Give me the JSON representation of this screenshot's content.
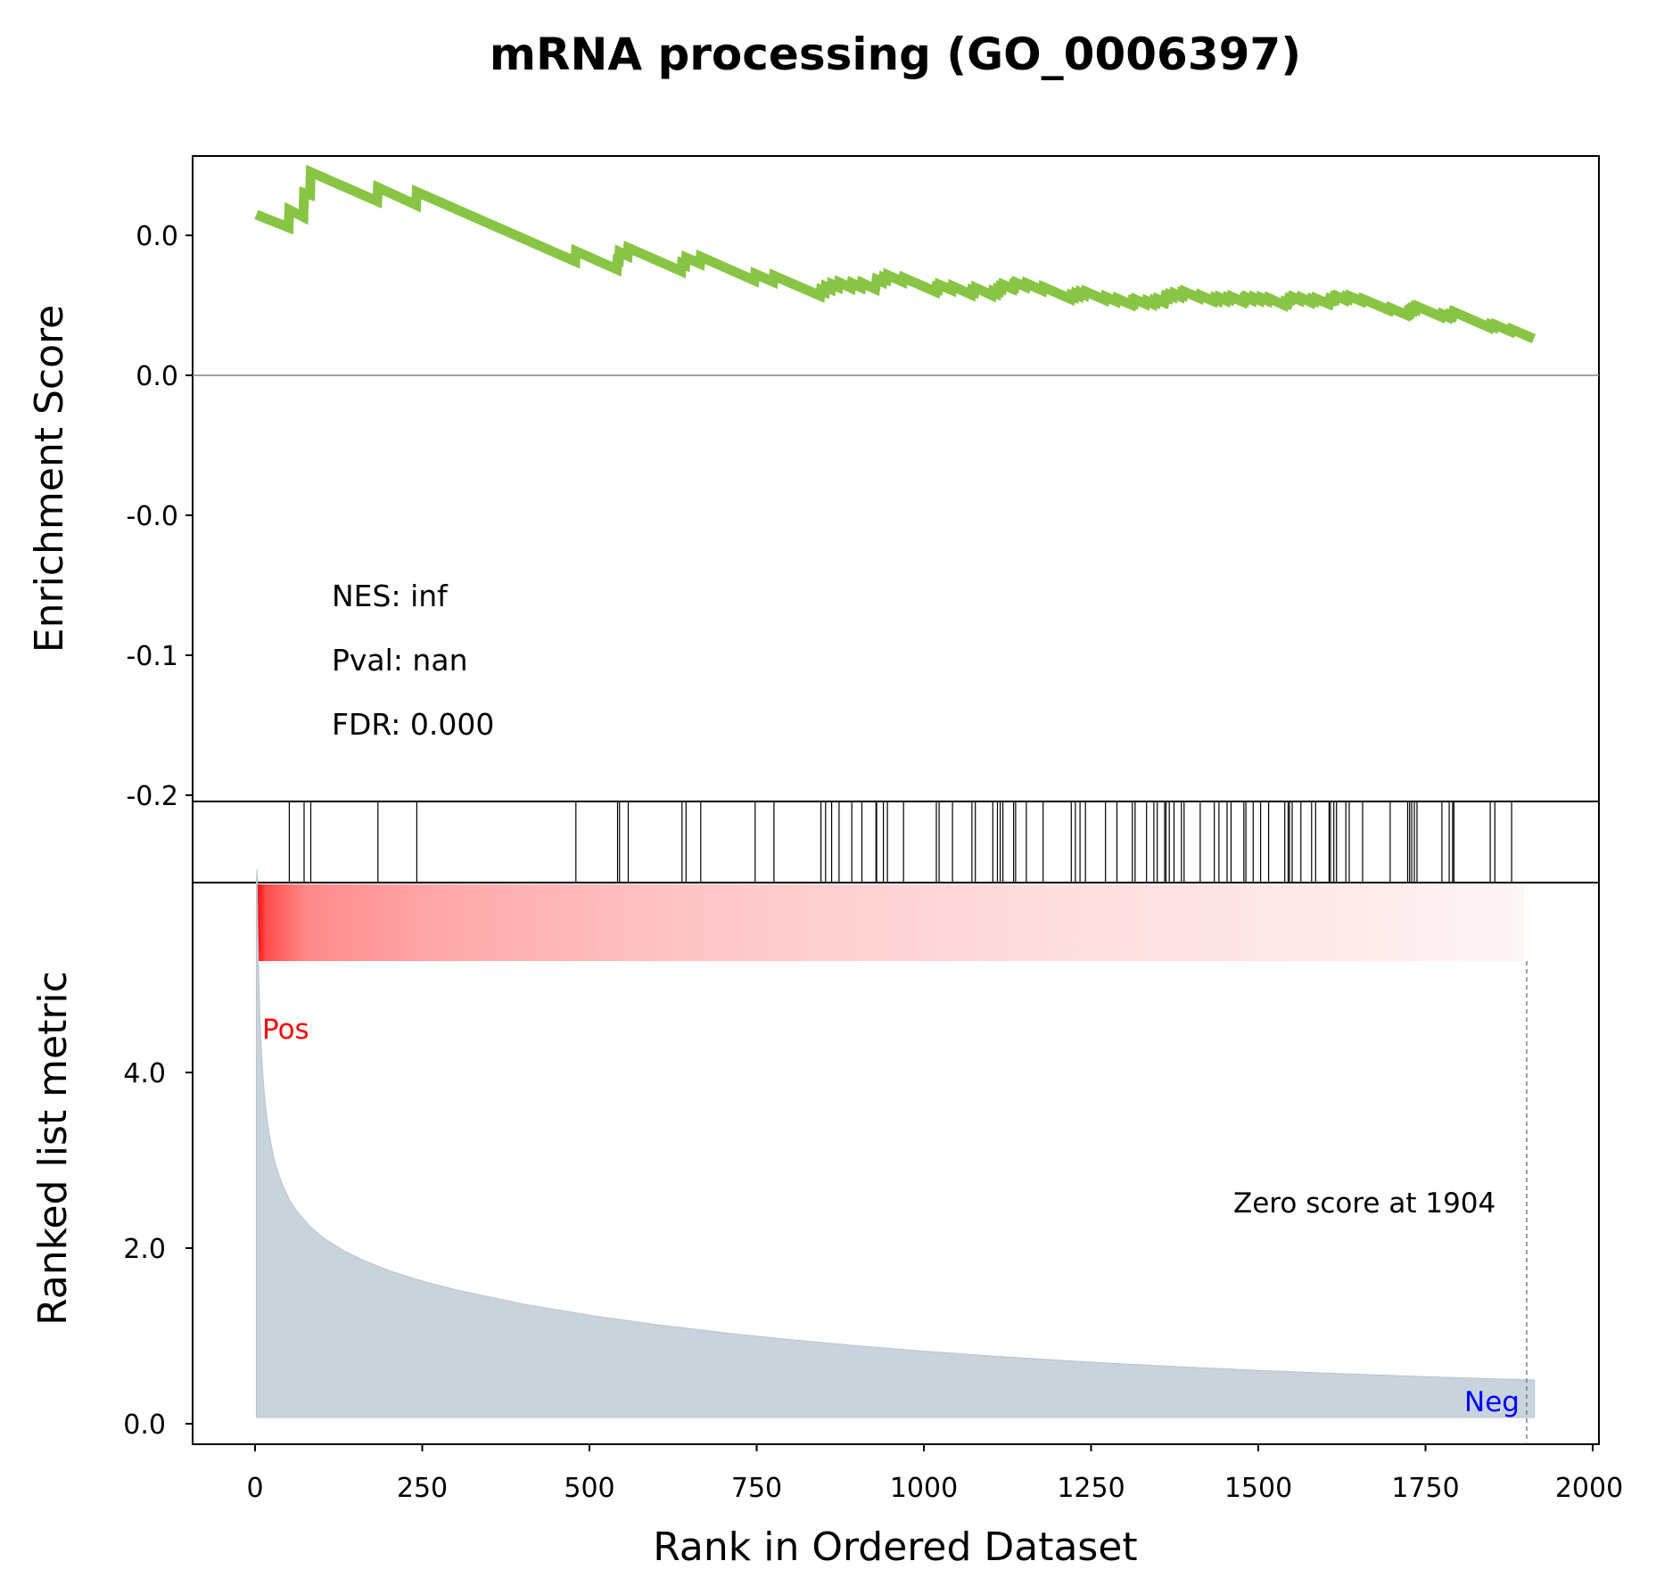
{
  "title": "mRNA processing (GO_0006397)",
  "es_panel": {
    "ylabel": "Enrichment Score",
    "ytick_labels": [
      "0.0",
      "0.0",
      "-0.0",
      "-0.1",
      "-0.1",
      "-0.2"
    ],
    "stats": {
      "nes": "NES: inf",
      "pval": "Pval: nan",
      "fdr": "FDR: 0.000"
    }
  },
  "metric_panel": {
    "ylabel": "Ranked list metric",
    "ytick_labels": [
      "0.0",
      "2.0",
      "4.0"
    ],
    "pos_label": "Pos",
    "neg_label": "Neg",
    "zero_label": "Zero score at 1904"
  },
  "xlabel": "Rank in Ordered Dataset",
  "xtick_labels": [
    "0",
    "250",
    "500",
    "750",
    "1000",
    "1250",
    "1500",
    "1750",
    "2000"
  ],
  "colors": {
    "es_line": "#88c544",
    "metric_fill": "#c9d3dc",
    "heat_start": "#ff0000",
    "pos_label": "#ff0000",
    "neg_label": "#0000ff"
  },
  "chart_data": {
    "type": "line",
    "xlabel": "Rank in Ordered Dataset",
    "ylabel": "Enrichment Score",
    "xlim": [
      -95,
      2000
    ],
    "es_ylim": [
      -0.23,
      0.023
    ],
    "metric_ylim": [
      -0.25,
      5.0
    ],
    "zero_score_rank": 1904,
    "hit_ranks": [
      49,
      71,
      81,
      181,
      239,
      476,
      538,
      541,
      554,
      634,
      640,
      662,
      743,
      771,
      841,
      848,
      857,
      868,
      887,
      902,
      923,
      924,
      934,
      940,
      964,
      1013,
      1017,
      1037,
      1066,
      1071,
      1097,
      1104,
      1108,
      1112,
      1128,
      1131,
      1147,
      1172,
      1214,
      1220,
      1227,
      1235,
      1265,
      1282,
      1305,
      1309,
      1326,
      1337,
      1342,
      1353,
      1355,
      1360,
      1367,
      1378,
      1382,
      1406,
      1427,
      1434,
      1446,
      1452,
      1471,
      1474,
      1485,
      1496,
      1508,
      1532,
      1537,
      1539,
      1543,
      1556,
      1572,
      1578,
      1598,
      1600,
      1605,
      1609,
      1623,
      1628,
      1648,
      1689,
      1715,
      1718,
      1721,
      1725,
      1729,
      1766,
      1777,
      1782,
      1784,
      1838,
      1845,
      1870
    ],
    "running_es": [
      [
        0,
        0.0
      ],
      [
        48,
        -0.005
      ],
      [
        49,
        0.0019
      ],
      [
        70,
        -0.0009
      ],
      [
        71,
        0.0085
      ],
      [
        80,
        0.0078
      ],
      [
        81,
        0.0167
      ],
      [
        180,
        0.0053
      ],
      [
        181,
        0.0107
      ],
      [
        238,
        0.0038
      ],
      [
        239,
        0.0089
      ],
      [
        475,
        -0.0183
      ],
      [
        476,
        -0.0143
      ],
      [
        537,
        -0.0214
      ],
      [
        538,
        -0.0178
      ],
      [
        540,
        -0.018
      ],
      [
        541,
        -0.0146
      ],
      [
        553,
        -0.0161
      ],
      [
        554,
        -0.013
      ],
      [
        633,
        -0.0221
      ],
      [
        634,
        -0.0191
      ],
      [
        639,
        -0.0197
      ],
      [
        640,
        -0.0168
      ],
      [
        661,
        -0.0192
      ],
      [
        662,
        -0.0165
      ],
      [
        742,
        -0.0258
      ],
      [
        743,
        -0.0232
      ],
      [
        770,
        -0.0263
      ],
      [
        771,
        -0.0239
      ],
      [
        840,
        -0.0318
      ],
      [
        841,
        -0.0296
      ],
      [
        847,
        -0.0303
      ],
      [
        848,
        -0.0282
      ],
      [
        856,
        -0.0292
      ],
      [
        857,
        -0.0272
      ],
      [
        867,
        -0.0284
      ],
      [
        868,
        -0.0265
      ],
      [
        886,
        -0.0287
      ],
      [
        887,
        -0.0268
      ],
      [
        901,
        -0.0285
      ],
      [
        902,
        -0.0267
      ],
      [
        922,
        -0.0291
      ],
      [
        924,
        -0.0254
      ],
      [
        933,
        -0.0264
      ],
      [
        934,
        -0.0247
      ],
      [
        939,
        -0.0253
      ],
      [
        940,
        -0.0236
      ],
      [
        963,
        -0.0263
      ],
      [
        964,
        -0.0247
      ],
      [
        1012,
        -0.0302
      ],
      [
        1013,
        -0.0286
      ],
      [
        1016,
        -0.029
      ],
      [
        1017,
        -0.0274
      ],
      [
        1036,
        -0.0296
      ],
      [
        1037,
        -0.028
      ],
      [
        1065,
        -0.0313
      ],
      [
        1066,
        -0.0297
      ],
      [
        1070,
        -0.0302
      ],
      [
        1071,
        -0.0286
      ],
      [
        1096,
        -0.0316
      ],
      [
        1097,
        -0.0301
      ],
      [
        1103,
        -0.0309
      ],
      [
        1104,
        -0.0294
      ],
      [
        1107,
        -0.0298
      ],
      [
        1108,
        -0.0284
      ],
      [
        1111,
        -0.0288
      ],
      [
        1112,
        -0.0274
      ],
      [
        1127,
        -0.0291
      ],
      [
        1128,
        -0.0277
      ],
      [
        1130,
        -0.028
      ],
      [
        1131,
        -0.0266
      ],
      [
        1146,
        -0.0283
      ],
      [
        1147,
        -0.0269
      ],
      [
        1171,
        -0.0297
      ],
      [
        1172,
        -0.0283
      ],
      [
        1213,
        -0.033
      ],
      [
        1214,
        -0.0317
      ],
      [
        1219,
        -0.0323
      ],
      [
        1220,
        -0.031
      ],
      [
        1226,
        -0.0318
      ],
      [
        1227,
        -0.0305
      ],
      [
        1234,
        -0.0314
      ],
      [
        1235,
        -0.0301
      ],
      [
        1264,
        -0.0334
      ],
      [
        1265,
        -0.0321
      ],
      [
        1281,
        -0.034
      ],
      [
        1282,
        -0.0328
      ],
      [
        1304,
        -0.0353
      ],
      [
        1305,
        -0.034
      ],
      [
        1308,
        -0.0344
      ],
      [
        1309,
        -0.0332
      ],
      [
        1325,
        -0.035
      ],
      [
        1326,
        -0.0338
      ],
      [
        1336,
        -0.035
      ],
      [
        1337,
        -0.0338
      ],
      [
        1341,
        -0.0343
      ],
      [
        1342,
        -0.0331
      ],
      [
        1352,
        -0.0343
      ],
      [
        1353,
        -0.0331
      ],
      [
        1354,
        -0.0333
      ],
      [
        1355,
        -0.0321
      ],
      [
        1359,
        -0.0326
      ],
      [
        1360,
        -0.0314
      ],
      [
        1366,
        -0.0321
      ],
      [
        1367,
        -0.0309
      ],
      [
        1377,
        -0.0321
      ],
      [
        1378,
        -0.0309
      ],
      [
        1381,
        -0.0313
      ],
      [
        1382,
        -0.0301
      ],
      [
        1405,
        -0.0327
      ],
      [
        1406,
        -0.0316
      ],
      [
        1426,
        -0.0339
      ],
      [
        1427,
        -0.0328
      ],
      [
        1433,
        -0.0336
      ],
      [
        1434,
        -0.0324
      ],
      [
        1445,
        -0.0337
      ],
      [
        1446,
        -0.0326
      ],
      [
        1451,
        -0.0332
      ],
      [
        1452,
        -0.0321
      ],
      [
        1470,
        -0.0342
      ],
      [
        1471,
        -0.0331
      ],
      [
        1473,
        -0.0334
      ],
      [
        1474,
        -0.0323
      ],
      [
        1484,
        -0.0335
      ],
      [
        1485,
        -0.0324
      ],
      [
        1495,
        -0.0336
      ],
      [
        1496,
        -0.0325
      ],
      [
        1507,
        -0.0338
      ],
      [
        1508,
        -0.0327
      ],
      [
        1531,
        -0.0354
      ],
      [
        1532,
        -0.0343
      ],
      [
        1536,
        -0.0348
      ],
      [
        1537,
        -0.0337
      ],
      [
        1538,
        -0.0339
      ],
      [
        1539,
        -0.0329
      ],
      [
        1542,
        -0.0332
      ],
      [
        1543,
        -0.0322
      ],
      [
        1555,
        -0.0336
      ],
      [
        1556,
        -0.0325
      ],
      [
        1571,
        -0.0343
      ],
      [
        1572,
        -0.0332
      ],
      [
        1577,
        -0.0338
      ],
      [
        1578,
        -0.0328
      ],
      [
        1597,
        -0.0349
      ],
      [
        1598,
        -0.0339
      ],
      [
        1599,
        -0.0341
      ],
      [
        1600,
        -0.0331
      ],
      [
        1604,
        -0.0335
      ],
      [
        1605,
        -0.0325
      ],
      [
        1608,
        -0.0329
      ],
      [
        1609,
        -0.0319
      ],
      [
        1622,
        -0.0334
      ],
      [
        1623,
        -0.0324
      ],
      [
        1627,
        -0.0329
      ],
      [
        1628,
        -0.0319
      ],
      [
        1647,
        -0.034
      ],
      [
        1648,
        -0.033
      ],
      [
        1688,
        -0.0375
      ],
      [
        1689,
        -0.0365
      ],
      [
        1714,
        -0.0393
      ],
      [
        1715,
        -0.0383
      ],
      [
        1717,
        -0.0386
      ],
      [
        1718,
        -0.0377
      ],
      [
        1720,
        -0.038
      ],
      [
        1721,
        -0.037
      ],
      [
        1724,
        -0.0374
      ],
      [
        1725,
        -0.0364
      ],
      [
        1728,
        -0.0369
      ],
      [
        1729,
        -0.0359
      ],
      [
        1765,
        -0.04
      ],
      [
        1766,
        -0.039
      ],
      [
        1776,
        -0.0402
      ],
      [
        1777,
        -0.0393
      ],
      [
        1781,
        -0.0398
      ],
      [
        1782,
        -0.0388
      ],
      [
        1783,
        -0.039
      ],
      [
        1784,
        -0.0381
      ],
      [
        1837,
        -0.0442
      ],
      [
        1838,
        -0.0432
      ],
      [
        1844,
        -0.044
      ],
      [
        1845,
        -0.0431
      ],
      [
        1869,
        -0.0458
      ],
      [
        1870,
        -0.0449
      ],
      [
        1903,
        -0.0486
      ]
    ]
  }
}
